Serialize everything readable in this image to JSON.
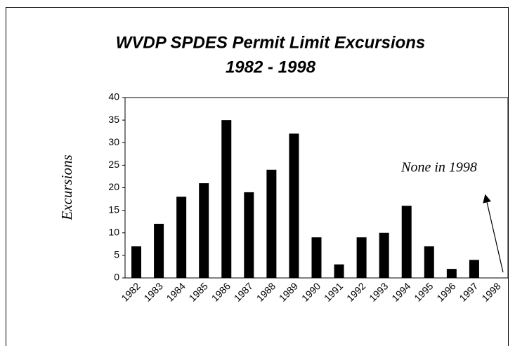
{
  "chart_data": {
    "type": "bar",
    "title": [
      "WVDP SPDES Permit Limit Excursions",
      "1982 - 1998"
    ],
    "y_label": "Excursions",
    "annotation": "None in 1998",
    "categories": [
      "1982",
      "1983",
      "1984",
      "1985",
      "1986",
      "1987",
      "1988",
      "1989",
      "1990",
      "1991",
      "1992",
      "1993",
      "1994",
      "1995",
      "1996",
      "1997",
      "1998"
    ],
    "values": [
      7,
      12,
      18,
      21,
      35,
      19,
      24,
      32,
      9,
      3,
      9,
      10,
      16,
      7,
      2,
      4,
      0
    ],
    "color": "#000000",
    "ylim": [
      0,
      40
    ],
    "yticks": [
      0,
      5,
      10,
      15,
      20,
      25,
      30,
      35,
      40
    ],
    "grid": false
  }
}
